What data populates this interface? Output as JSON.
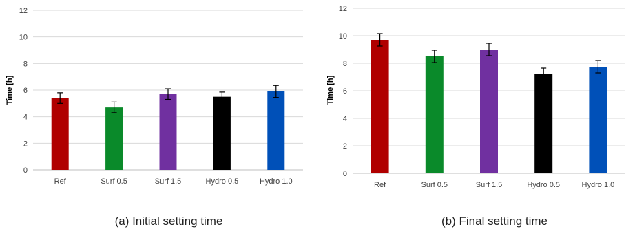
{
  "chart_data": [
    {
      "type": "bar",
      "caption": "(a) Initial setting time",
      "categories": [
        "Ref",
        "Surf 0.5",
        "Surf 1.5",
        "Hydro 0.5",
        "Hydro 1.0"
      ],
      "values": [
        5.4,
        4.7,
        5.7,
        5.5,
        5.9
      ],
      "errors": [
        0.4,
        0.4,
        0.4,
        0.35,
        0.45
      ],
      "colors": [
        "#b00000",
        "#0a8a2a",
        "#7030a0",
        "#000000",
        "#0050b8"
      ],
      "ylabel": "Time [h]",
      "ylim": [
        0,
        12
      ],
      "yticks": [
        0,
        2,
        4,
        6,
        8,
        10,
        12
      ],
      "grid": true
    },
    {
      "type": "bar",
      "caption": "(b) Final setting time",
      "categories": [
        "Ref",
        "Surf 0.5",
        "Surf 1.5",
        "Hydro 0.5",
        "Hydro 1.0"
      ],
      "values": [
        9.7,
        8.5,
        9.0,
        7.2,
        7.75
      ],
      "errors": [
        0.45,
        0.45,
        0.45,
        0.45,
        0.45
      ],
      "colors": [
        "#b00000",
        "#0a8a2a",
        "#7030a0",
        "#000000",
        "#0050b8"
      ],
      "ylabel": "Time [h]",
      "ylim": [
        0,
        12
      ],
      "yticks": [
        0,
        2,
        4,
        6,
        8,
        10,
        12
      ],
      "grid": true
    }
  ]
}
